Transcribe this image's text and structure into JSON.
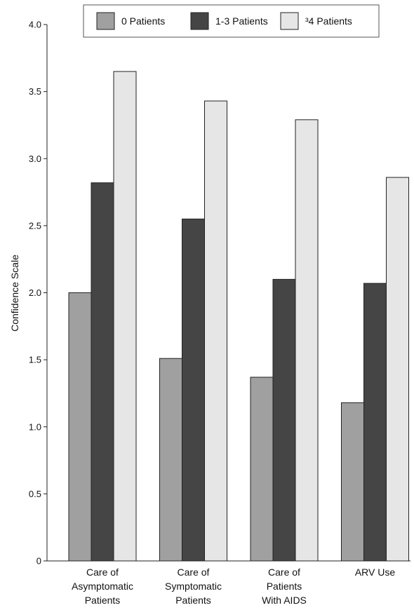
{
  "chart_data": {
    "type": "bar",
    "title": "",
    "xlabel": "",
    "ylabel": "Confidence Scale",
    "ylim": [
      0,
      4.0
    ],
    "yticks": [
      "0",
      "0.5",
      "1.0",
      "1.5",
      "2.0",
      "2.5",
      "3.0",
      "3.5",
      "4.0"
    ],
    "categories": [
      [
        "Care of",
        "Asymptomatic",
        "Patients"
      ],
      [
        "Care of",
        "Symptomatic",
        "Patients"
      ],
      [
        "Care of",
        "Patients",
        "With AIDS"
      ],
      [
        "ARV Use"
      ]
    ],
    "series": [
      {
        "name": "0 Patients",
        "color": "#a0a0a0",
        "values": [
          2.0,
          1.51,
          1.37,
          1.18
        ]
      },
      {
        "name": "1-3 Patients",
        "color": "#454545",
        "values": [
          2.82,
          2.55,
          2.1,
          2.07
        ]
      },
      {
        "name": "³4 Patients",
        "color": "#e6e6e6",
        "values": [
          3.65,
          3.43,
          3.29,
          2.86
        ]
      }
    ],
    "legend": "top",
    "grid": false
  }
}
